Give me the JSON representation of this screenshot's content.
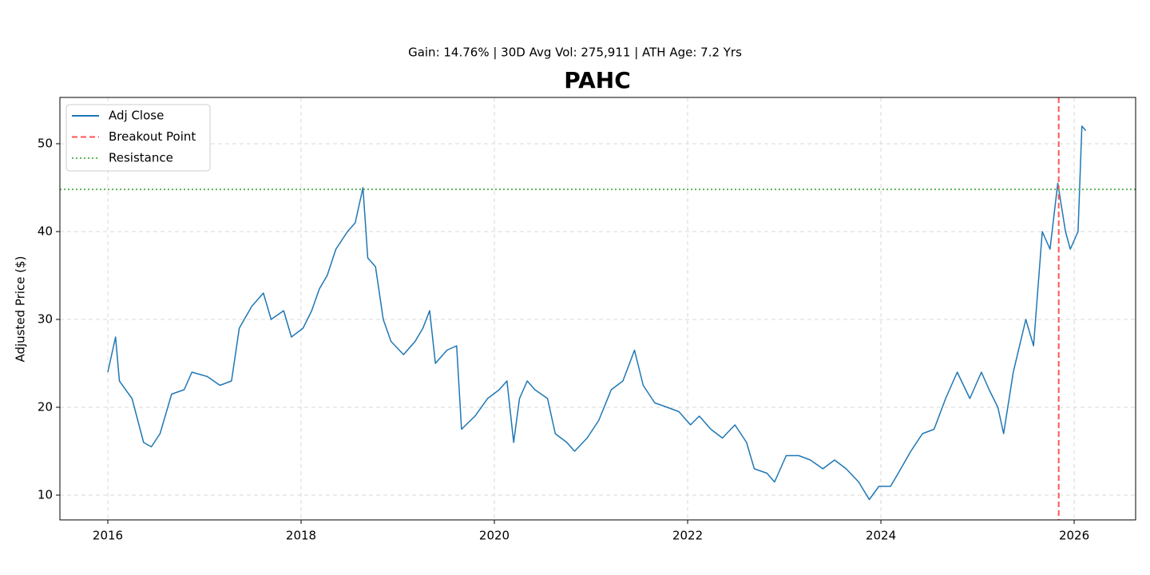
{
  "chart_data": {
    "type": "line",
    "title": "PAHC",
    "subtitle": "Gain: 14.76% | 30D Avg Vol: 275,911 | ATH Age: 7.2 Yrs",
    "y_label": "Adjusted Price ($)",
    "x": [
      2016.0,
      2016.08,
      2016.12,
      2016.25,
      2016.37,
      2016.45,
      2016.54,
      2016.66,
      2016.79,
      2016.87,
      2017.03,
      2017.16,
      2017.28,
      2017.36,
      2017.49,
      2017.61,
      2017.69,
      2017.82,
      2017.9,
      2018.02,
      2018.11,
      2018.19,
      2018.27,
      2018.36,
      2018.48,
      2018.56,
      2018.64,
      2018.69,
      2018.77,
      2018.85,
      2018.93,
      2019.06,
      2019.18,
      2019.26,
      2019.33,
      2019.39,
      2019.51,
      2019.61,
      2019.66,
      2019.8,
      2019.93,
      2020.05,
      2020.13,
      2020.2,
      2020.26,
      2020.34,
      2020.42,
      2020.55,
      2020.63,
      2020.75,
      2020.83,
      2020.96,
      2021.08,
      2021.21,
      2021.33,
      2021.45,
      2021.54,
      2021.66,
      2021.79,
      2021.91,
      2022.03,
      2022.12,
      2022.24,
      2022.36,
      2022.49,
      2022.61,
      2022.69,
      2022.82,
      2022.9,
      2023.02,
      2023.15,
      2023.27,
      2023.4,
      2023.52,
      2023.64,
      2023.77,
      2023.88,
      2023.98,
      2024.1,
      2024.18,
      2024.31,
      2024.43,
      2024.55,
      2024.67,
      2024.79,
      2024.92,
      2025.04,
      2025.12,
      2025.21,
      2025.27,
      2025.37,
      2025.5,
      2025.58,
      2025.67,
      2025.75,
      2025.83,
      2025.91,
      2025.96,
      2026.04,
      2026.08,
      2026.12
    ],
    "series": [
      {
        "name": "Adj Close",
        "color": "#1f77b4",
        "values": [
          24,
          28,
          23,
          21,
          16,
          15.5,
          17,
          21.5,
          22,
          24,
          23.5,
          22.5,
          23,
          29,
          31.5,
          33,
          30,
          31,
          28,
          29,
          31,
          33.5,
          35,
          38,
          40,
          41,
          45,
          37,
          36,
          30,
          27.5,
          26,
          27.5,
          29,
          31,
          25,
          26.5,
          27,
          17.5,
          19,
          21,
          22,
          23,
          16,
          21,
          23,
          22,
          21,
          17,
          16,
          15,
          16.5,
          18.5,
          22,
          23,
          26.5,
          22.5,
          20.5,
          20,
          19.5,
          18,
          19,
          17.5,
          16.5,
          18,
          16,
          13,
          12.5,
          11.5,
          14.5,
          14.5,
          14,
          13,
          14,
          13,
          11.5,
          9.5,
          11,
          11,
          12.5,
          15,
          17,
          17.5,
          21,
          24,
          21,
          24,
          22,
          20,
          17,
          24,
          30,
          27,
          40,
          38,
          45.5,
          40,
          38,
          40,
          52,
          51.5
        ]
      }
    ],
    "reference_lines": [
      {
        "name": "Breakout Point",
        "axis": "x",
        "value": 2025.84,
        "color": "#ff5555",
        "style": "dashed"
      },
      {
        "name": "Resistance",
        "axis": "y",
        "value": 44.8,
        "color": "#5cb85c",
        "style": "dotted"
      }
    ],
    "xlim": [
      2015.504,
      2026.636
    ],
    "ylim": [
      7.18,
      55.27
    ],
    "xticks": [
      2016,
      2018,
      2020,
      2022,
      2024,
      2026
    ],
    "yticks": [
      10,
      20,
      30,
      40,
      50
    ],
    "grid": true,
    "legend": "upper-left"
  }
}
